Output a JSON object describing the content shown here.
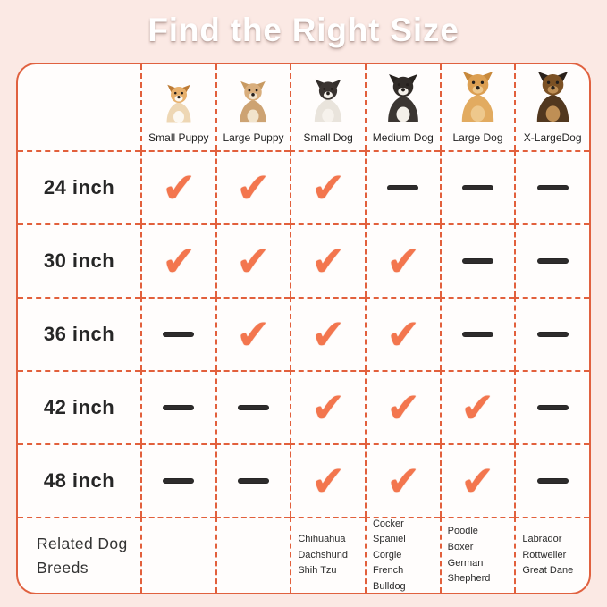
{
  "title": "Find the Right Size",
  "colors": {
    "page_bg": "#fbe9e4",
    "table_bg": "#fffdfc",
    "border_solid": "#e0613f",
    "border_dashed": "#e2603c",
    "check": "#f3764e",
    "dash": "#2e2c2c"
  },
  "table": {
    "corner_label": "",
    "columns": [
      {
        "label": "Small Puppy",
        "icon": "corgi-puppy-icon",
        "icon_size": 48,
        "icon_colors": {
          "ear": "#bd7b35",
          "head": "#e7b06c",
          "body": "#eed7b4",
          "chest": "#fcf8f1"
        },
        "breeds": ""
      },
      {
        "label": "Large Puppy",
        "icon": "chihuahua-puppy-icon",
        "icon_size": 52,
        "icon_colors": {
          "ear": "#c89a62",
          "head": "#d9ae7c",
          "body": "#cda373",
          "chest": "#f2e4cc"
        },
        "breeds": ""
      },
      {
        "label": "Small Dog",
        "icon": "french-bulldog-icon",
        "icon_size": 54,
        "icon_colors": {
          "ear": "#332e2b",
          "head": "#3a3431",
          "body": "#e9e4dc",
          "chest": "#f6f2ec"
        },
        "breeds": "Chihuahua\nDachshund\nShih Tzu"
      },
      {
        "label": "Medium Dog",
        "icon": "border-collie-icon",
        "icon_size": 60,
        "icon_colors": {
          "ear": "#27231f",
          "head": "#312c28",
          "body": "#3b3632",
          "chest": "#f4f0e9"
        },
        "breeds": "Cocker Spaniel\nCorgie\nFrench Bulldog"
      },
      {
        "label": "Large Dog",
        "icon": "golden-retriever-icon",
        "icon_size": 63,
        "icon_colors": {
          "ear": "#c8893b",
          "head": "#dc9f52",
          "body": "#e2ab60",
          "chest": "#eec88c"
        },
        "breeds": "Poodle\nBoxer\nGerman Shepherd"
      },
      {
        "label": "X-LargeDog",
        "icon": "german-shepherd-icon",
        "icon_size": 63,
        "icon_colors": {
          "ear": "#2a211a",
          "head": "#7c5124",
          "body": "#52381f",
          "chest": "#bf8f55"
        },
        "breeds": "Labrador\nRottweiler\nGreat Dane"
      }
    ],
    "rows": [
      {
        "label": "24 inch",
        "marks": [
          "check",
          "check",
          "check",
          "dash",
          "dash",
          "dash"
        ]
      },
      {
        "label": "30 inch",
        "marks": [
          "check",
          "check",
          "check",
          "check",
          "dash",
          "dash"
        ]
      },
      {
        "label": "36 inch",
        "marks": [
          "dash",
          "check",
          "check",
          "check",
          "dash",
          "dash"
        ]
      },
      {
        "label": "42 inch",
        "marks": [
          "dash",
          "dash",
          "check",
          "check",
          "check",
          "dash"
        ]
      },
      {
        "label": "48 inch",
        "marks": [
          "dash",
          "dash",
          "check",
          "check",
          "check",
          "dash"
        ]
      }
    ],
    "footer_label": "Related Dog\nBreeds"
  },
  "chart_data": {
    "type": "table",
    "title": "Find the Right Size",
    "columns": [
      "Small Puppy",
      "Large Puppy",
      "Small Dog",
      "Medium Dog",
      "Large Dog",
      "X-LargeDog"
    ],
    "rows": [
      "24 inch",
      "30 inch",
      "36 inch",
      "42 inch",
      "48 inch"
    ],
    "cells": [
      [
        "check",
        "check",
        "check",
        "dash",
        "dash",
        "dash"
      ],
      [
        "check",
        "check",
        "check",
        "check",
        "dash",
        "dash"
      ],
      [
        "dash",
        "check",
        "check",
        "check",
        "dash",
        "dash"
      ],
      [
        "dash",
        "dash",
        "check",
        "check",
        "check",
        "dash"
      ],
      [
        "dash",
        "dash",
        "check",
        "check",
        "check",
        "dash"
      ]
    ],
    "related_dog_breeds": {
      "Small Dog": [
        "Chihuahua",
        "Dachshund",
        "Shih Tzu"
      ],
      "Medium Dog": [
        "Cocker Spaniel",
        "Corgie",
        "French Bulldog"
      ],
      "Large Dog": [
        "Poodle",
        "Boxer",
        "German Shepherd"
      ],
      "X-LargeDog": [
        "Labrador",
        "Rottweiler",
        "Great Dane"
      ]
    }
  }
}
